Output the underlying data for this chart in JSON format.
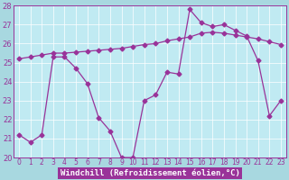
{
  "xlabel": "Windchill (Refroidissement éolien,°C)",
  "hours": [
    0,
    1,
    2,
    3,
    4,
    5,
    6,
    7,
    8,
    9,
    10,
    11,
    12,
    13,
    14,
    15,
    16,
    17,
    18,
    19,
    20,
    21,
    22,
    23
  ],
  "line1": [
    21.2,
    20.8,
    21.2,
    25.3,
    25.3,
    24.7,
    23.9,
    22.1,
    21.4,
    20.0,
    20.0,
    23.0,
    23.3,
    24.5,
    24.4,
    27.8,
    27.1,
    26.9,
    27.0,
    26.7,
    26.4,
    25.1,
    22.2,
    23.0
  ],
  "line2": [
    25.2,
    25.3,
    25.4,
    25.5,
    25.5,
    25.55,
    25.6,
    25.65,
    25.7,
    25.75,
    25.85,
    25.95,
    26.0,
    26.15,
    26.25,
    26.35,
    26.55,
    26.6,
    26.55,
    26.45,
    26.35,
    26.25,
    26.1,
    25.95
  ],
  "line_color": "#993399",
  "bg_color": "#a8d8e0",
  "plot_bg": "#c0eaf2",
  "grid_color": "#ffffff",
  "ylim": [
    20,
    28
  ],
  "yticks": [
    20,
    21,
    22,
    23,
    24,
    25,
    26,
    27,
    28
  ],
  "xticks": [
    0,
    1,
    2,
    3,
    4,
    5,
    6,
    7,
    8,
    9,
    10,
    11,
    12,
    13,
    14,
    15,
    16,
    17,
    18,
    19,
    20,
    21,
    22,
    23
  ],
  "tick_fontsize": 5.5,
  "ytick_fontsize": 6.0,
  "xlabel_fontsize": 6.5,
  "marker": "D",
  "markersize": 2.5,
  "linewidth": 0.9
}
